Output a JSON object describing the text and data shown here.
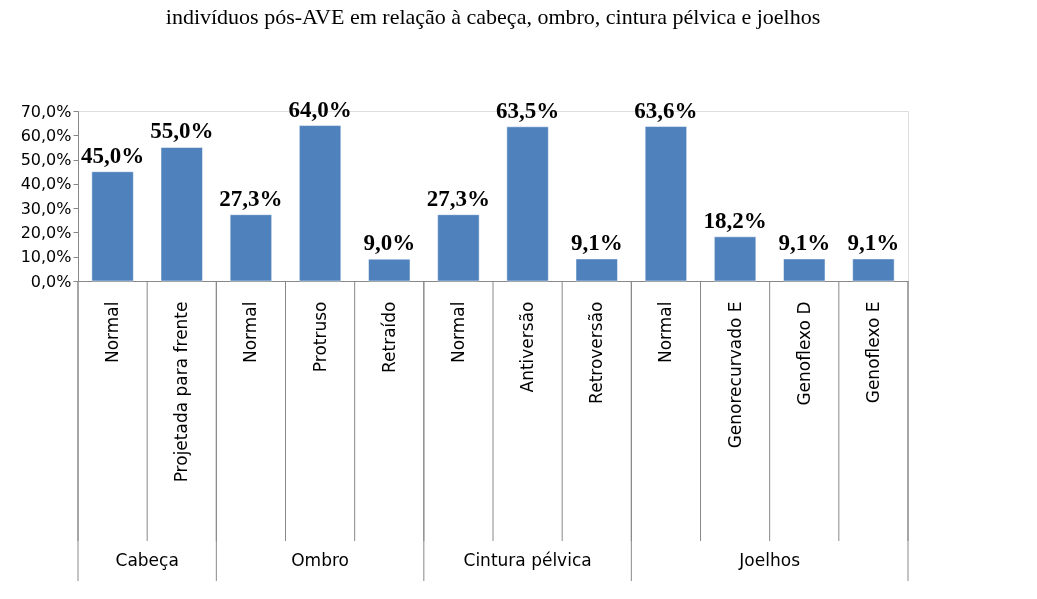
{
  "chart_data": {
    "type": "bar",
    "title": "indivíduos pós-AVE em relação à cabeça, ombro, cintura pélvica e joelhos",
    "categories": [
      "Normal",
      "Projetada para frente",
      "Normal",
      "Protruso",
      "Retraído",
      "Normal",
      "Antiversão",
      "Retroversão",
      "Normal",
      "Genorecurvado E",
      "Genoflexo D",
      "Genoflexo E"
    ],
    "values": [
      45.0,
      55.0,
      27.3,
      64.0,
      9.0,
      27.3,
      63.5,
      9.1,
      63.6,
      18.2,
      9.1,
      9.1
    ],
    "value_labels": [
      "45,0%",
      "55,0%",
      "27,3%",
      "64,0%",
      "9,0%",
      "27,3%",
      "63,5%",
      "9,1%",
      "63,6%",
      "18,2%",
      "9,1%",
      "9,1%"
    ],
    "color": "#4f81bd",
    "ylim": [
      0,
      70
    ],
    "yticks": [
      {
        "value": 0,
        "label": "0,0%"
      },
      {
        "value": 10,
        "label": "10,0%"
      },
      {
        "value": 20,
        "label": "20,0%"
      },
      {
        "value": 30,
        "label": "30,0%"
      },
      {
        "value": 40,
        "label": "40,0%"
      },
      {
        "value": 50,
        "label": "50,0%"
      },
      {
        "value": 60,
        "label": "60,0%"
      },
      {
        "value": 70,
        "label": "70,0%"
      }
    ],
    "grid": false,
    "annotations": [
      "Cabeça",
      "Ombro",
      "Cintura pélvica",
      "Joelhos"
    ]
  }
}
